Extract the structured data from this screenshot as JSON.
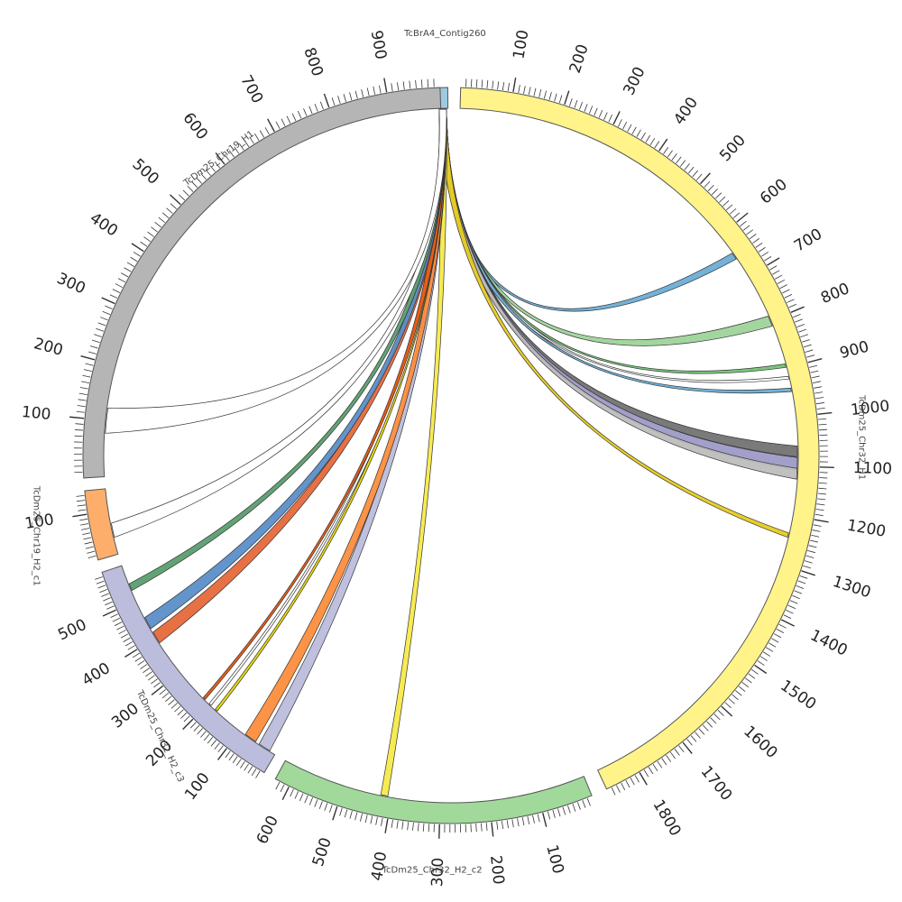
{
  "chart_data": {
    "type": "circos",
    "segments": [
      {
        "id": "contig260",
        "name": "TcBrA4_Contig260",
        "length": 12,
        "color": "#9ecae1",
        "start_deg": -2.2,
        "end_deg": -0.5,
        "tick_labels": [],
        "reversed": false,
        "label_pos": "top"
      },
      {
        "id": "chr32h1",
        "name": "TcDm25_Chr32_H1",
        "length": 1870,
        "color": "#fff38a",
        "start_deg": 1.5,
        "end_deg": 155,
        "tick_labels": [
          "100",
          "200",
          "300",
          "400",
          "500",
          "600",
          "700",
          "800",
          "900",
          "1000",
          "1100",
          "1200",
          "1300",
          "1400",
          "1500",
          "1600",
          "1700",
          "1800"
        ],
        "reversed": false,
        "label_pos": "right"
      },
      {
        "id": "chr32h2c2",
        "name": "TcDm25_Chr32_H2_c2",
        "length": 630,
        "color": "#a1d99b",
        "start_deg": 157.5,
        "end_deg": 208.5,
        "tick_labels": [
          "100",
          "200",
          "300",
          "400",
          "500",
          "600"
        ],
        "reversed": false,
        "label_pos": "bottom"
      },
      {
        "id": "chr32h2c3",
        "name": "TcDm25_Chr32_H2_c3",
        "length": 590,
        "color": "#bcbddc",
        "start_deg": 210.5,
        "end_deg": 251.5,
        "tick_labels": [
          "100",
          "200",
          "300",
          "400",
          "500"
        ],
        "reversed": false,
        "label_pos": "left"
      },
      {
        "id": "chr19h2c1",
        "name": "TcDm25_Chr19_H2_c1",
        "length": 150,
        "color": "#fdae6b",
        "start_deg": 253.5,
        "end_deg": 264.5,
        "tick_labels": [
          "100"
        ],
        "reversed": false,
        "label_pos": "left"
      },
      {
        "id": "chr19h1",
        "name": "TcDm25_Chr19_H1",
        "length": 990,
        "color": "#b5b5b5",
        "start_deg": 266.5,
        "end_deg": 358.3,
        "tick_labels": [
          "100",
          "200",
          "300",
          "400",
          "500",
          "600",
          "700",
          "800",
          "900"
        ],
        "reversed": false,
        "label_pos": "top-left"
      }
    ],
    "links": [
      {
        "source": "contig260",
        "target": "chr32h1",
        "target_pos": 650,
        "width": 8,
        "color": "#6baed6"
      },
      {
        "source": "contig260",
        "target": "chr32h1",
        "target_pos": 800,
        "width": 12,
        "color": "#9ed49a"
      },
      {
        "source": "contig260",
        "target": "chr32h1",
        "target_pos": 895,
        "width": 4,
        "color": "#74c476"
      },
      {
        "source": "contig260",
        "target": "chr32h1",
        "target_pos": 920,
        "width": 3,
        "color": "#ffffff"
      },
      {
        "source": "contig260",
        "target": "chr32h1",
        "target_pos": 945,
        "width": 4,
        "color": "#6baed6"
      },
      {
        "source": "contig260",
        "target": "chr32h1",
        "target_pos": 1070,
        "width": 12,
        "color": "#737373"
      },
      {
        "source": "contig260",
        "target": "chr32h1",
        "target_pos": 1095,
        "width": 14,
        "color": "#9e9ac8"
      },
      {
        "source": "contig260",
        "target": "chr32h1",
        "target_pos": 1115,
        "width": 12,
        "color": "#bdbdbd"
      },
      {
        "source": "contig260",
        "target": "chr32h1",
        "target_pos": 1240,
        "width": 5,
        "color": "#e7cb1e"
      },
      {
        "source": "contig260",
        "target": "chr32h2c2",
        "target_pos": 415,
        "width": 8,
        "color": "#f7ea4a"
      },
      {
        "source": "contig260",
        "target": "chr32h2c3",
        "target_pos": 30,
        "width": 14,
        "color": "#bcbddc"
      },
      {
        "source": "contig260",
        "target": "chr32h2c3",
        "target_pos": 70,
        "width": 14,
        "color": "#fd8d3c"
      },
      {
        "source": "contig260",
        "target": "chr32h2c3",
        "target_pos": 175,
        "width": 3,
        "color": "#e6d800"
      },
      {
        "source": "contig260",
        "target": "chr32h2c3",
        "target_pos": 195,
        "width": 3,
        "color": "#ffffff"
      },
      {
        "source": "contig260",
        "target": "chr32h2c3",
        "target_pos": 215,
        "width": 3,
        "color": "#e6550d"
      },
      {
        "source": "contig260",
        "target": "chr32h2c3",
        "target_pos": 400,
        "width": 14,
        "color": "#e6693a"
      },
      {
        "source": "contig260",
        "target": "chr32h2c3",
        "target_pos": 440,
        "width": 14,
        "color": "#5b8ec9"
      },
      {
        "source": "contig260",
        "target": "chr32h2c3",
        "target_pos": 535,
        "width": 8,
        "color": "#5a9e6f"
      },
      {
        "source": "contig260",
        "target": "chr19h2c1",
        "target_pos": 55,
        "width": 16,
        "color": "#ffffff"
      },
      {
        "source": "contig260",
        "target": "chr19h1",
        "target_pos": 100,
        "width": 28,
        "color": "#ffffff"
      }
    ]
  }
}
